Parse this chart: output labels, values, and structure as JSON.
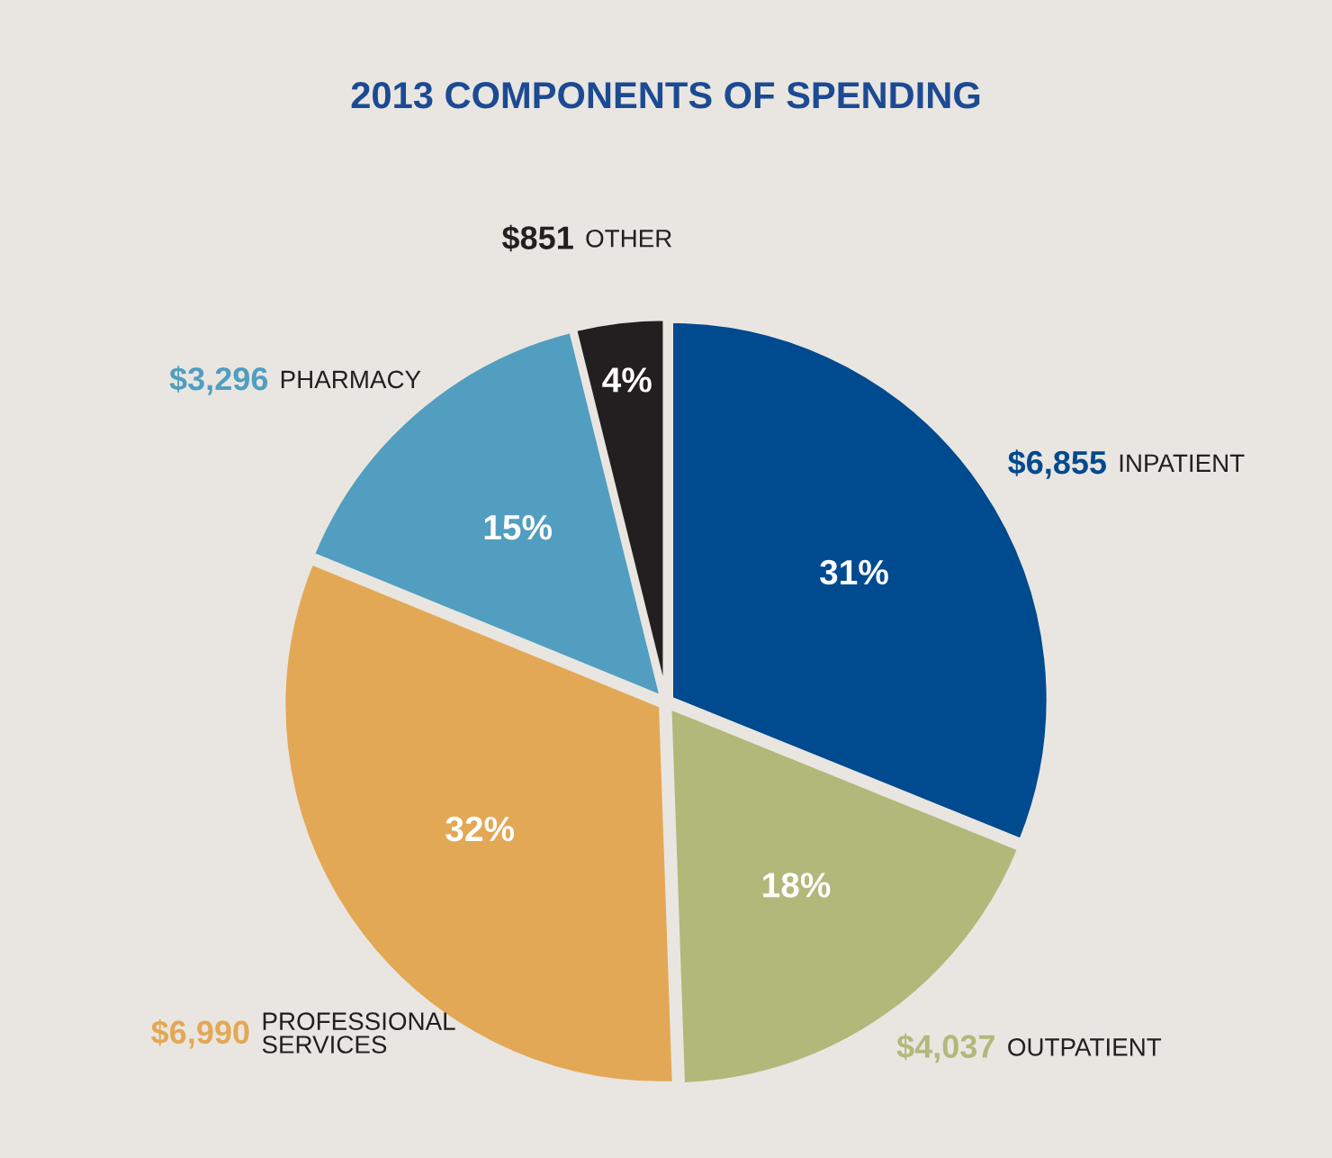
{
  "chart_data": {
    "type": "pie",
    "title": "2013 COMPONENTS OF SPENDING",
    "categories": [
      "INPATIENT",
      "OUTPATIENT",
      "PROFESSIONAL\nSERVICES",
      "PHARMACY",
      "OTHER"
    ],
    "values": [
      6855,
      4037,
      6990,
      3296,
      851
    ],
    "value_labels": [
      "$6,855",
      "$4,037",
      "$6,990",
      "$3,296",
      "$851"
    ],
    "colors": [
      "#004a8f",
      "#b1b87a",
      "#e3a855",
      "#529ec0",
      "#231f20"
    ],
    "annotations": [
      {
        "text": "31%",
        "x": "INPATIENT"
      },
      {
        "text": "18%",
        "x": "OUTPATIENT"
      },
      {
        "text": "32%",
        "x": "PROFESSIONAL\nSERVICES"
      },
      {
        "text": "15%",
        "x": "PHARMACY"
      },
      {
        "text": "4%",
        "x": "OTHER"
      }
    ]
  }
}
